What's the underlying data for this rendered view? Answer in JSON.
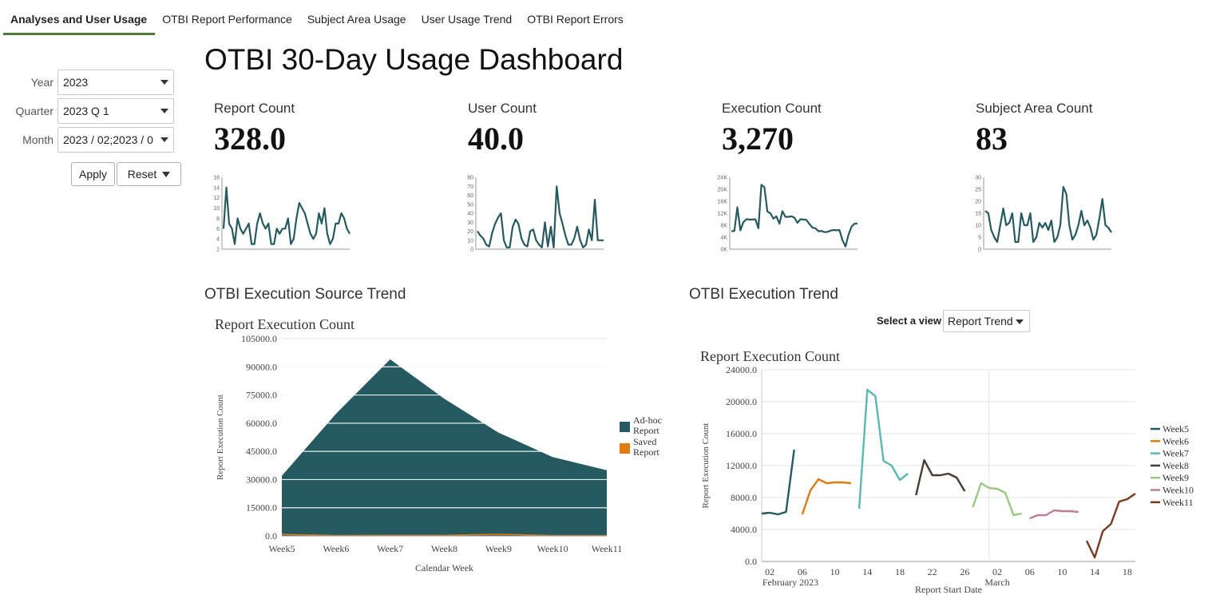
{
  "tabs": [
    {
      "label": "Analyses and User Usage",
      "active": true
    },
    {
      "label": "OTBI Report Performance",
      "active": false
    },
    {
      "label": "Subject Area Usage",
      "active": false
    },
    {
      "label": "User Usage Trend",
      "active": false
    },
    {
      "label": "OTBI Report Errors",
      "active": false
    }
  ],
  "prompts": {
    "year": {
      "label": "Year",
      "value": "2023"
    },
    "quarter": {
      "label": "Quarter",
      "value": "2023 Q 1"
    },
    "month": {
      "label": "Month",
      "value": "2023 / 02;2023 / 0"
    },
    "apply_label": "Apply",
    "reset_label": "Reset"
  },
  "dashboard_title": "OTBI 30-Day Usage Dashboard",
  "colors": {
    "dark_teal": "#245a60",
    "orange": "#e07b10",
    "tab_underline": "#4f7a3a"
  },
  "kpis": [
    {
      "label": "Report Count",
      "value": "328.0",
      "spark": {
        "ticks": [
          "16",
          "14",
          "12",
          "10",
          "8",
          "6",
          "4",
          "2"
        ],
        "min": 2,
        "max": 16,
        "values": [
          6,
          14,
          7,
          6,
          3,
          8,
          6,
          5,
          6,
          7,
          3,
          3,
          7,
          9,
          7,
          6,
          7,
          3,
          3,
          6,
          5,
          6,
          6,
          8,
          3,
          4,
          8,
          11,
          10,
          9,
          7,
          5,
          4,
          5,
          9,
          7,
          10,
          5,
          3,
          4,
          7,
          7,
          9,
          8,
          6,
          5
        ]
      }
    },
    {
      "label": "User Count",
      "value": "40.0",
      "spark": {
        "ticks": [
          "80",
          "70",
          "60",
          "50",
          "40",
          "30",
          "20",
          "10",
          "0"
        ],
        "min": 0,
        "max": 80,
        "values": [
          20,
          15,
          12,
          5,
          3,
          18,
          28,
          35,
          40,
          10,
          2,
          2,
          25,
          33,
          28,
          12,
          5,
          3,
          20,
          22,
          10,
          5,
          2,
          30,
          3,
          25,
          2,
          70,
          40,
          28,
          15,
          5,
          5,
          12,
          25,
          10,
          2,
          5,
          22,
          10,
          55,
          10,
          10,
          10
        ]
      }
    },
    {
      "label": "Execution Count",
      "value": "3,270",
      "spark": {
        "ticks": [
          "24K",
          "20K",
          "16K",
          "12K",
          "8K",
          "4K",
          "0K"
        ],
        "min": 0,
        "max": 24000,
        "values": [
          6000,
          6100,
          14000,
          6300,
          9000,
          10000,
          9900,
          9900,
          10000,
          7000,
          21500,
          20700,
          12600,
          12000,
          10200,
          11000,
          8500,
          12700,
          10800,
          10800,
          11000,
          10500,
          8800,
          10000,
          9900,
          9800,
          8400,
          7200,
          7000,
          6000,
          6100,
          5700,
          5800,
          6200,
          6400,
          6300,
          6400,
          3000,
          900,
          4800,
          7500,
          8500,
          8600
        ]
      }
    },
    {
      "label": "Subject Area Count",
      "value": "83",
      "spark": {
        "ticks": [
          "30",
          "25",
          "20",
          "15",
          "10",
          "5",
          "0"
        ],
        "min": 0,
        "max": 30,
        "values": [
          16,
          15,
          8,
          5,
          3,
          10,
          17,
          10,
          11,
          15,
          3,
          3,
          15,
          10,
          10,
          15,
          3,
          5,
          11,
          9,
          11,
          8,
          12,
          3,
          5,
          10,
          26,
          23,
          10,
          4,
          6,
          10,
          16,
          10,
          12,
          9,
          4,
          6,
          13,
          21,
          10,
          9,
          7
        ]
      }
    }
  ],
  "source_trend_title": "OTBI Execution Source Trend",
  "execution_trend_title": "OTBI Execution Trend",
  "view_select": {
    "label": "Select a view",
    "value": "Report Trend"
  },
  "chart_data": [
    {
      "type": "area",
      "title": "Report Execution Count",
      "xlabel": "Calendar Week",
      "ylabel": "Report Execution Count",
      "categories": [
        "Week5",
        "Week6",
        "Week7",
        "Week8",
        "Week9",
        "Week10",
        "Week11"
      ],
      "ylim": [
        0,
        105000
      ],
      "yticks": [
        "105000.0",
        "90000.0",
        "75000.0",
        "60000.0",
        "45000.0",
        "30000.0",
        "15000.0",
        "0.0"
      ],
      "series": [
        {
          "name": "Ad-hoc Report",
          "color": "#245a60",
          "values": [
            32000,
            65000,
            94000,
            73000,
            55000,
            42000,
            35000
          ]
        },
        {
          "name": "Saved Report",
          "color": "#e07b10",
          "values": [
            800,
            200,
            300,
            300,
            900,
            200,
            200
          ]
        }
      ],
      "legend": "right"
    },
    {
      "type": "line",
      "title": "Report Execution Count",
      "xlabel": "Report Start Date",
      "ylabel": "Report Execution Count",
      "ylim": [
        0,
        24000
      ],
      "yticks": [
        "24000.0",
        "20000.0",
        "16000.0",
        "12000.0",
        "8000.0",
        "4000.0",
        "0.0"
      ],
      "xticks": [
        "02",
        "06",
        "10",
        "14",
        "18",
        "22",
        "26",
        "02",
        "06",
        "10",
        "14",
        "18"
      ],
      "month_labels": [
        "February 2023",
        "March"
      ],
      "legend": "right",
      "series": [
        {
          "name": "Week5",
          "color": "#245a60",
          "x": [
            "2023-02-01",
            "2023-02-02",
            "2023-02-03",
            "2023-02-04",
            "2023-02-05"
          ],
          "y": [
            6000,
            6100,
            5900,
            6200,
            14000
          ]
        },
        {
          "name": "Week6",
          "color": "#e07b10",
          "x": [
            "2023-02-06",
            "2023-02-07",
            "2023-02-08",
            "2023-02-09",
            "2023-02-10",
            "2023-02-11",
            "2023-02-12"
          ],
          "y": [
            5900,
            8900,
            10300,
            9800,
            9900,
            9900,
            9800
          ]
        },
        {
          "name": "Week7",
          "color": "#5bb8b0",
          "x": [
            "2023-02-13",
            "2023-02-14",
            "2023-02-15",
            "2023-02-16",
            "2023-02-17",
            "2023-02-18",
            "2023-02-19"
          ],
          "y": [
            6600,
            21500,
            20700,
            12600,
            12000,
            10200,
            11000
          ]
        },
        {
          "name": "Week8",
          "color": "#4a3a32",
          "x": [
            "2023-02-20",
            "2023-02-21",
            "2023-02-22",
            "2023-02-23",
            "2023-02-24",
            "2023-02-25",
            "2023-02-26"
          ],
          "y": [
            8300,
            12700,
            10800,
            10800,
            11000,
            10500,
            8800
          ]
        },
        {
          "name": "Week9",
          "color": "#98c882",
          "x": [
            "2023-02-27",
            "2023-02-28",
            "2023-03-01",
            "2023-03-02",
            "2023-03-03",
            "2023-03-04",
            "2023-03-05"
          ],
          "y": [
            6800,
            9800,
            9200,
            9100,
            8600,
            5800,
            6000
          ]
        },
        {
          "name": "Week10",
          "color": "#c07d98",
          "x": [
            "2023-03-06",
            "2023-03-07",
            "2023-03-08",
            "2023-03-09",
            "2023-03-10",
            "2023-03-11",
            "2023-03-12"
          ],
          "y": [
            5400,
            5800,
            5800,
            6400,
            6300,
            6300,
            6200
          ]
        },
        {
          "name": "Week11",
          "color": "#7a3a22",
          "x": [
            "2023-03-13",
            "2023-03-14",
            "2023-03-15",
            "2023-03-16",
            "2023-03-17",
            "2023-03-18",
            "2023-03-19"
          ],
          "y": [
            2600,
            500,
            3800,
            4700,
            7500,
            7800,
            8500
          ]
        }
      ]
    }
  ]
}
